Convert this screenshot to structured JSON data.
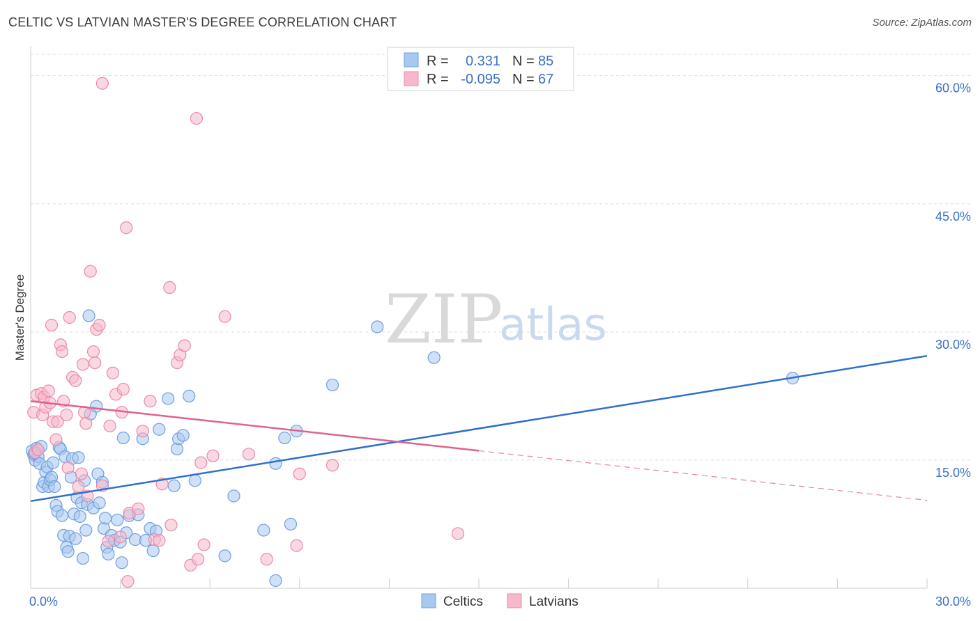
{
  "title": "CELTIC VS LATVIAN MASTER'S DEGREE CORRELATION CHART",
  "source": "Source: ZipAtlas.com",
  "watermark": {
    "zip": "ZIP",
    "atlas": "atlas"
  },
  "legend": {
    "r_label": "R =",
    "n_label": "N =",
    "rows": [
      {
        "r": "0.331",
        "n": "85"
      },
      {
        "r": "-0.095",
        "n": "67"
      }
    ]
  },
  "bottom_legend": [
    "Celtics",
    "Latvians"
  ],
  "colors": {
    "celtics_fill": "#a9c8f0",
    "celtics_stroke": "#6e9fe0",
    "celtics_line": "#2f6fcc",
    "latvians_fill": "#f6b8ca",
    "latvians_stroke": "#e98aa8",
    "latvians_line": "#e0628c",
    "grid": "#dddddd",
    "tick_text": "#3b6fc9"
  },
  "chart_data": {
    "type": "scatter",
    "title": "CELTIC VS LATVIAN MASTER'S DEGREE CORRELATION CHART",
    "xlabel": "",
    "ylabel": "Master's Degree",
    "xlim": [
      0,
      30
    ],
    "ylim": [
      0,
      62.5
    ],
    "grid": true,
    "legend_position": "top-center",
    "x_tick_labels": [
      "0.0%",
      "30.0%"
    ],
    "y_tick_values": [
      15,
      30,
      45,
      60
    ],
    "y_tick_labels": [
      "15.0%",
      "30.0%",
      "45.0%",
      "60.0%"
    ],
    "series": [
      {
        "name": "Celtics",
        "r": 0.331,
        "n": 85,
        "trend": {
          "x": [
            0,
            30
          ],
          "y": [
            10.2,
            27.2
          ],
          "dashed_from": null
        },
        "points": [
          [
            0.05,
            16.1
          ],
          [
            0.1,
            15.6
          ],
          [
            0.15,
            15.0
          ],
          [
            0.2,
            16.4
          ],
          [
            0.25,
            15.4
          ],
          [
            0.3,
            14.6
          ],
          [
            0.35,
            16.6
          ],
          [
            0.4,
            11.9
          ],
          [
            0.45,
            12.4
          ],
          [
            0.5,
            13.6
          ],
          [
            0.55,
            14.2
          ],
          [
            0.6,
            11.9
          ],
          [
            0.65,
            12.7
          ],
          [
            0.7,
            13.0
          ],
          [
            0.75,
            14.7
          ],
          [
            0.8,
            11.9
          ],
          [
            0.85,
            9.7
          ],
          [
            0.9,
            9.0
          ],
          [
            0.95,
            16.5
          ],
          [
            1.0,
            16.3
          ],
          [
            1.05,
            8.5
          ],
          [
            1.1,
            6.2
          ],
          [
            1.15,
            15.4
          ],
          [
            1.2,
            4.8
          ],
          [
            1.25,
            4.3
          ],
          [
            1.3,
            6.1
          ],
          [
            1.35,
            13.0
          ],
          [
            1.4,
            15.2
          ],
          [
            1.45,
            8.7
          ],
          [
            1.5,
            5.8
          ],
          [
            1.55,
            10.6
          ],
          [
            1.6,
            15.3
          ],
          [
            1.65,
            8.4
          ],
          [
            1.7,
            10.0
          ],
          [
            1.75,
            3.5
          ],
          [
            1.8,
            12.6
          ],
          [
            1.85,
            6.8
          ],
          [
            1.9,
            9.8
          ],
          [
            1.95,
            31.9
          ],
          [
            2.0,
            20.4
          ],
          [
            2.1,
            9.4
          ],
          [
            2.2,
            21.3
          ],
          [
            2.25,
            13.4
          ],
          [
            2.3,
            10.0
          ],
          [
            2.4,
            12.4
          ],
          [
            2.45,
            7.0
          ],
          [
            2.5,
            8.2
          ],
          [
            2.55,
            4.8
          ],
          [
            2.6,
            4.0
          ],
          [
            2.7,
            6.2
          ],
          [
            2.8,
            5.6
          ],
          [
            2.9,
            8.0
          ],
          [
            3.0,
            5.4
          ],
          [
            3.05,
            3.0
          ],
          [
            3.1,
            17.6
          ],
          [
            3.2,
            6.5
          ],
          [
            3.3,
            8.5
          ],
          [
            3.5,
            5.7
          ],
          [
            3.6,
            8.6
          ],
          [
            3.75,
            17.5
          ],
          [
            3.85,
            5.6
          ],
          [
            4.0,
            7.0
          ],
          [
            4.1,
            4.4
          ],
          [
            4.2,
            6.7
          ],
          [
            4.3,
            18.6
          ],
          [
            4.6,
            22.2
          ],
          [
            4.8,
            12.0
          ],
          [
            4.9,
            16.3
          ],
          [
            4.95,
            17.5
          ],
          [
            5.1,
            17.9
          ],
          [
            5.3,
            22.5
          ],
          [
            5.5,
            12.6
          ],
          [
            6.5,
            3.8
          ],
          [
            6.8,
            10.8
          ],
          [
            7.8,
            6.8
          ],
          [
            8.2,
            0.9
          ],
          [
            8.2,
            14.6
          ],
          [
            8.5,
            17.6
          ],
          [
            8.7,
            7.5
          ],
          [
            8.9,
            18.4
          ],
          [
            10.1,
            23.8
          ],
          [
            11.6,
            30.6
          ],
          [
            13.5,
            27.0
          ],
          [
            25.5,
            24.6
          ],
          [
            0.12,
            15.8
          ]
        ]
      },
      {
        "name": "Latvians",
        "r": -0.095,
        "n": 67,
        "trend": {
          "x": [
            0,
            30
          ],
          "y": [
            21.9,
            10.3
          ],
          "dashed_from": 15
        },
        "points": [
          [
            0.1,
            20.6
          ],
          [
            0.15,
            15.9
          ],
          [
            0.2,
            22.6
          ],
          [
            0.25,
            16.2
          ],
          [
            0.35,
            22.8
          ],
          [
            0.4,
            20.3
          ],
          [
            0.45,
            22.4
          ],
          [
            0.5,
            21.2
          ],
          [
            0.6,
            23.1
          ],
          [
            0.65,
            21.7
          ],
          [
            0.7,
            30.8
          ],
          [
            0.75,
            19.5
          ],
          [
            0.85,
            17.4
          ],
          [
            0.9,
            19.5
          ],
          [
            1.0,
            28.5
          ],
          [
            1.05,
            27.7
          ],
          [
            1.1,
            21.9
          ],
          [
            1.2,
            20.3
          ],
          [
            1.25,
            14.1
          ],
          [
            1.3,
            31.7
          ],
          [
            1.4,
            24.7
          ],
          [
            1.5,
            24.3
          ],
          [
            1.6,
            11.9
          ],
          [
            1.7,
            13.4
          ],
          [
            1.75,
            26.2
          ],
          [
            1.8,
            20.6
          ],
          [
            1.85,
            19.3
          ],
          [
            1.9,
            10.8
          ],
          [
            2.0,
            37.1
          ],
          [
            2.1,
            27.7
          ],
          [
            2.15,
            26.4
          ],
          [
            2.2,
            30.3
          ],
          [
            2.3,
            30.8
          ],
          [
            2.4,
            12.0
          ],
          [
            2.4,
            59.1
          ],
          [
            2.6,
            5.5
          ],
          [
            2.65,
            19.0
          ],
          [
            2.75,
            25.2
          ],
          [
            2.85,
            22.7
          ],
          [
            3.0,
            6.0
          ],
          [
            3.05,
            20.6
          ],
          [
            3.1,
            23.3
          ],
          [
            3.2,
            42.2
          ],
          [
            3.25,
            0.8
          ],
          [
            3.3,
            8.8
          ],
          [
            3.6,
            9.3
          ],
          [
            3.75,
            18.4
          ],
          [
            4.0,
            21.9
          ],
          [
            4.15,
            5.7
          ],
          [
            4.3,
            5.6
          ],
          [
            4.4,
            12.2
          ],
          [
            4.65,
            35.2
          ],
          [
            4.7,
            7.4
          ],
          [
            4.9,
            26.4
          ],
          [
            5.0,
            27.3
          ],
          [
            5.15,
            28.4
          ],
          [
            5.35,
            2.7
          ],
          [
            5.55,
            55.0
          ],
          [
            5.6,
            3.4
          ],
          [
            5.7,
            14.7
          ],
          [
            5.8,
            5.1
          ],
          [
            6.1,
            15.5
          ],
          [
            6.5,
            31.8
          ],
          [
            7.3,
            15.7
          ],
          [
            7.9,
            3.4
          ],
          [
            8.9,
            5.0
          ],
          [
            9.0,
            13.4
          ]
        ]
      }
    ],
    "extra_latvian_points": [
      [
        10.1,
        14.4
      ],
      [
        14.3,
        6.4
      ]
    ]
  }
}
